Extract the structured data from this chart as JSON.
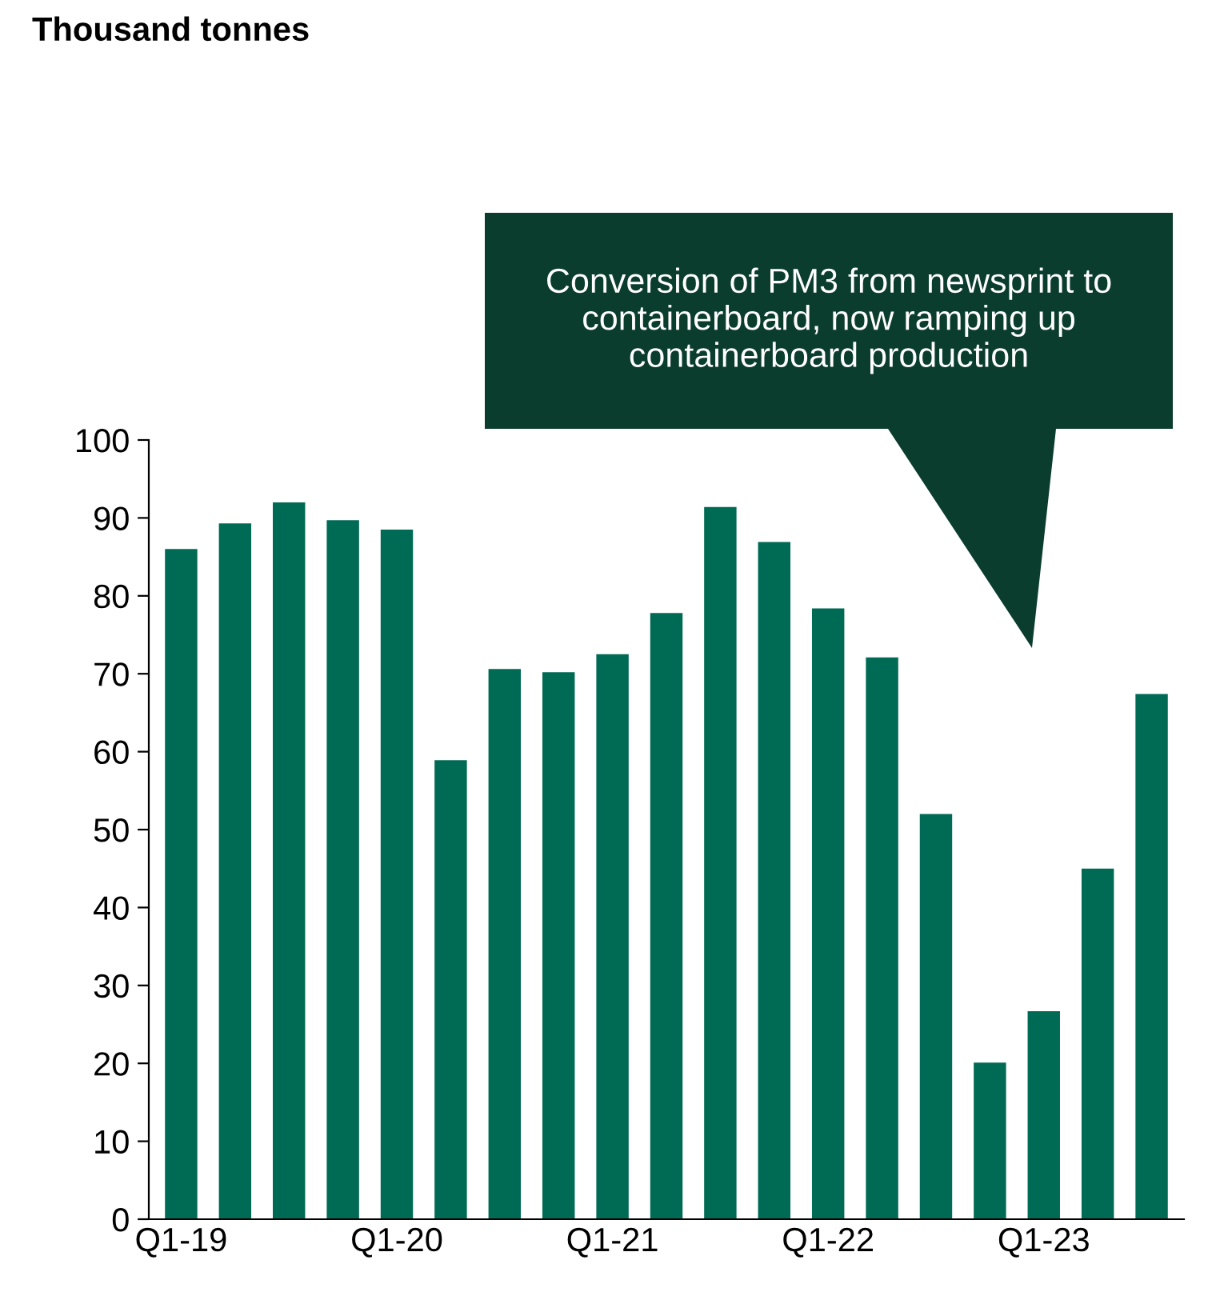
{
  "chart_data": {
    "type": "bar",
    "title": "Thousand tonnes",
    "categories": [
      "Q1-19",
      null,
      null,
      null,
      "Q1-20",
      null,
      null,
      null,
      "Q1-21",
      null,
      null,
      null,
      "Q1-22",
      null,
      null,
      null,
      "Q1-23",
      null,
      null
    ],
    "values": [
      86,
      89.3,
      92,
      89.7,
      88.5,
      58.9,
      70.6,
      70.2,
      72.5,
      77.8,
      91.4,
      86.9,
      78.4,
      72.1,
      52,
      20.1,
      26.7,
      45,
      67.4
    ],
    "color": "#006b54",
    "ylim": [
      0,
      100
    ],
    "yticks": [
      0,
      10,
      20,
      30,
      40,
      50,
      60,
      70,
      80,
      90,
      100
    ],
    "grid": false,
    "legend": false,
    "annotations": [
      "Conversion of PM3 from newsprint to containerboard, now ramping up containerboard production"
    ]
  }
}
